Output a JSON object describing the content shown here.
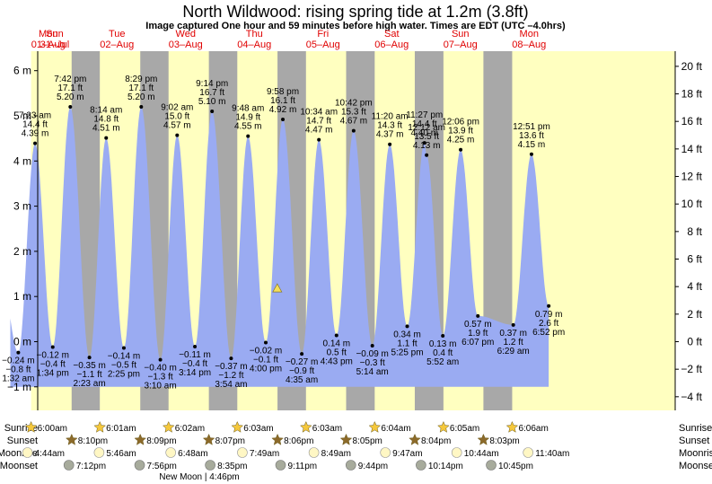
{
  "title": "North Wildwood: rising  spring tide at 1.2m (3.8ft)",
  "subtitle": "Image captured One hour and 59 minutes before high water. Times are EDT (UTC –4.0hrs)",
  "days": [
    {
      "dow": "Sun",
      "date": "31–Jul"
    },
    {
      "dow": "Mon",
      "date": "01–Aug"
    },
    {
      "dow": "Tue",
      "date": "02–Aug"
    },
    {
      "dow": "Wed",
      "date": "03–Aug"
    },
    {
      "dow": "Thu",
      "date": "04–Aug"
    },
    {
      "dow": "Fri",
      "date": "05–Aug"
    },
    {
      "dow": "Sat",
      "date": "06–Aug"
    },
    {
      "dow": "Sun",
      "date": "07–Aug"
    },
    {
      "dow": "Mon",
      "date": "08–Aug"
    }
  ],
  "chart_data": {
    "type": "area",
    "y_left_unit": "m",
    "y_right_unit": "ft",
    "ylim_m": [
      -1.5,
      6.2
    ],
    "yticks_m": [
      "6 m",
      "5 m",
      "4 m",
      "3 m",
      "2 m",
      "1 m",
      "0 m",
      "−1 m"
    ],
    "yticks_ft": [
      "20 ft",
      "18 ft",
      "16 ft",
      "14 ft",
      "12 ft",
      "10 ft",
      "8 ft",
      "6 ft",
      "4 ft",
      "2 ft",
      "0 ft",
      "−2 ft",
      "−4 ft"
    ],
    "current_level_m": 1.2,
    "highs": [
      {
        "time": "7:23 am",
        "ft": "14.4 ft",
        "m": 4.39,
        "label_m": "4.39 m"
      },
      {
        "time": "7:42 pm",
        "ft": "17.1 ft",
        "m": 5.2,
        "label_m": "5.20 m"
      },
      {
        "time": "8:14 am",
        "ft": "14.8 ft",
        "m": 4.51,
        "label_m": "4.51 m"
      },
      {
        "time": "8:29 pm",
        "ft": "17.1 ft",
        "m": 5.2,
        "label_m": "5.20 m"
      },
      {
        "time": "9:02 am",
        "ft": "15.0 ft",
        "m": 4.57,
        "label_m": "4.57 m"
      },
      {
        "time": "9:14 pm",
        "ft": "16.7 ft",
        "m": 5.1,
        "label_m": "5.10 m"
      },
      {
        "time": "9:48 am",
        "ft": "14.9 ft",
        "m": 4.55,
        "label_m": "4.55 m"
      },
      {
        "time": "9:58 pm",
        "ft": "16.1 ft",
        "m": 4.92,
        "label_m": "4.92 m"
      },
      {
        "time": "10:34 am",
        "ft": "14.7 ft",
        "m": 4.47,
        "label_m": "4.47 m"
      },
      {
        "time": "10:42 pm",
        "ft": "15.3 ft",
        "m": 4.67,
        "label_m": "4.67 m"
      },
      {
        "time": "11:20 am",
        "ft": "14.3 ft",
        "m": 4.37,
        "label_m": "4.37 m"
      },
      {
        "time": "11:27 pm",
        "ft": "14.4 ft",
        "m": 4.4,
        "label_m": "4.40 m"
      },
      {
        "time": "12:06 pm",
        "ft": "13.9 ft",
        "m": 4.25,
        "label_m": "4.25 m"
      },
      {
        "time": "12:12 am",
        "ft": "13.5 ft",
        "m": 4.13,
        "label_m": "4.13 m"
      },
      {
        "time": "12:51 pm",
        "ft": "13.6 ft",
        "m": 4.15,
        "label_m": "4.15 m"
      }
    ],
    "lows": [
      {
        "time": "1:32 am",
        "ft": "−0.8 ft",
        "m": -0.24,
        "label_m": "−0.24 m"
      },
      {
        "time": "1:34 pm",
        "ft": "−0.4 ft",
        "m": -0.12,
        "label_m": "−0.12 m"
      },
      {
        "time": "2:23 am",
        "ft": "−1.1 ft",
        "m": -0.35,
        "label_m": "−0.35 m"
      },
      {
        "time": "2:25 pm",
        "ft": "−0.5 ft",
        "m": -0.14,
        "label_m": "−0.14 m"
      },
      {
        "time": "3:10 am",
        "ft": "−1.3 ft",
        "m": -0.4,
        "label_m": "−0.40 m"
      },
      {
        "time": "3:14 pm",
        "ft": "−0.4 ft",
        "m": -0.11,
        "label_m": "−0.11 m"
      },
      {
        "time": "3:54 am",
        "ft": "−1.2 ft",
        "m": -0.37,
        "label_m": "−0.37 m"
      },
      {
        "time": "4:00 pm",
        "ft": "−0.1 ft",
        "m": -0.02,
        "label_m": "−0.02 m"
      },
      {
        "time": "4:35 am",
        "ft": "−0.9 ft",
        "m": -0.27,
        "label_m": "−0.27 m"
      },
      {
        "time": "4:43 pm",
        "ft": "0.5 ft",
        "m": 0.14,
        "label_m": "0.14 m"
      },
      {
        "time": "5:14 am",
        "ft": "−0.3 ft",
        "m": -0.09,
        "label_m": "−0.09 m"
      },
      {
        "time": "5:25 pm",
        "ft": "1.1 ft",
        "m": 0.34,
        "label_m": "0.34 m"
      },
      {
        "time": "5:52 am",
        "ft": "0.4 ft",
        "m": 0.13,
        "label_m": "0.13 m"
      },
      {
        "time": "6:07 pm",
        "ft": "1.9 ft",
        "m": 0.57,
        "label_m": "0.57 m"
      },
      {
        "time": "6:29 am",
        "ft": "1.2 ft",
        "m": 0.37,
        "label_m": "0.37 m"
      },
      {
        "time": "6:52 pm",
        "ft": "2.6 ft",
        "m": 0.79,
        "label_m": "0.79 m"
      }
    ]
  },
  "rows": {
    "sunrise_label": "Sunrise",
    "sunset_label": "Sunset",
    "moonrise_label": "Moonrise",
    "moonset_label": "Moonset",
    "sunrise": [
      "6:00am",
      "6:01am",
      "6:02am",
      "6:03am",
      "6:03am",
      "6:04am",
      "6:05am",
      "6:06am"
    ],
    "sunset": [
      "8:10pm",
      "8:09pm",
      "8:07pm",
      "8:06pm",
      "8:05pm",
      "8:04pm",
      "8:03pm"
    ],
    "moonrise": [
      "4:44am",
      "5:46am",
      "6:48am",
      "7:49am",
      "8:49am",
      "9:47am",
      "10:44am",
      "11:40am"
    ],
    "moonset": [
      "7:12pm",
      "7:56pm",
      "8:35pm",
      "9:11pm",
      "9:44pm",
      "10:14pm",
      "10:45pm"
    ],
    "new_moon": "New Moon | 4:46pm"
  },
  "colors": {
    "night": "#a8a8a8",
    "day": "#ffffc0",
    "tide": "#9aabf2",
    "day_text": "#e00000",
    "sun": "#f5c83c",
    "sunset_star": "#8c6a2a",
    "moon_rise": "#fff7c4",
    "moon_set": "#a7ab9c",
    "marker": "#f5e05a"
  }
}
